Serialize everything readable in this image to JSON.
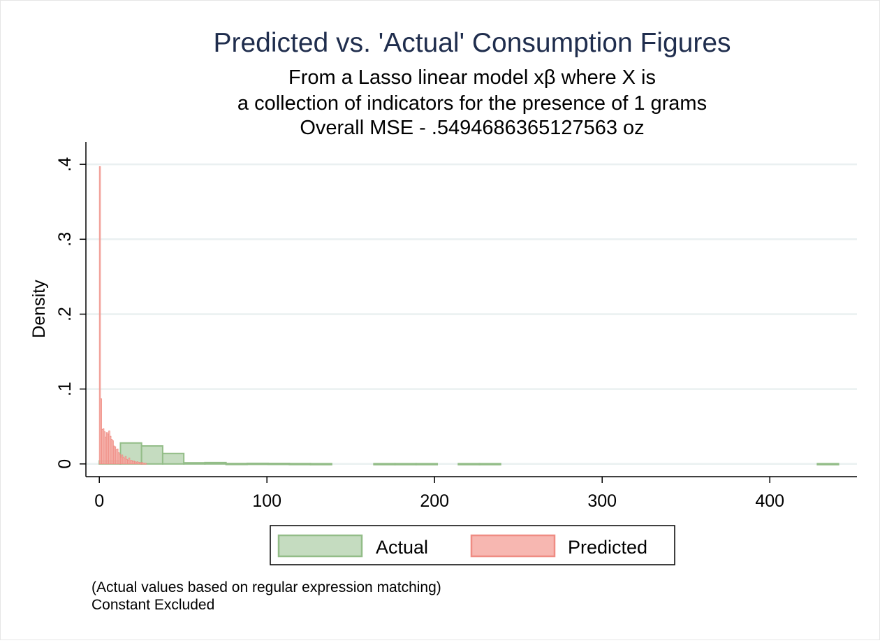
{
  "chart_data": {
    "type": "bar",
    "title": "Predicted vs. 'Actual' Consumption Figures",
    "subtitle_lines": [
      "From a Lasso linear model xβ where X is",
      "a collection of indicators for the presence  of 1 grams",
      "Overall MSE - .5494686365127563 oz"
    ],
    "xlabel": "",
    "ylabel": "Density",
    "xlim": [
      -8,
      452
    ],
    "ylim": [
      -0.017,
      0.43
    ],
    "x_ticks": [
      0,
      100,
      200,
      300,
      400
    ],
    "x_tick_labels": [
      "0",
      "100",
      "200",
      "300",
      "400"
    ],
    "y_ticks": [
      0,
      0.1,
      0.2,
      0.3,
      0.4
    ],
    "y_tick_labels": [
      "0",
      ".1",
      ".2",
      ".3",
      ".4"
    ],
    "grid": true,
    "legend_position": "bottom",
    "series": [
      {
        "name": "Actual",
        "fill": "#c5dcc0",
        "stroke": "#93bd88",
        "bins": [
          {
            "x0": 0,
            "x1": 12.6,
            "y": 0.004
          },
          {
            "x0": 12.6,
            "x1": 25.2,
            "y": 0.028
          },
          {
            "x0": 25.2,
            "x1": 37.8,
            "y": 0.024
          },
          {
            "x0": 37.8,
            "x1": 50.4,
            "y": 0.014
          },
          {
            "x0": 50.4,
            "x1": 63.0,
            "y": 0.0015
          },
          {
            "x0": 63.0,
            "x1": 75.6,
            "y": 0.0018
          },
          {
            "x0": 75.6,
            "x1": 88.2,
            "y": 0.0006
          },
          {
            "x0": 88.2,
            "x1": 100.8,
            "y": 0.0008
          },
          {
            "x0": 100.8,
            "x1": 113.4,
            "y": 0.0007
          },
          {
            "x0": 113.4,
            "x1": 126.0,
            "y": 0.0005
          },
          {
            "x0": 126.0,
            "x1": 138.6,
            "y": 0.0004
          },
          {
            "x0": 163.8,
            "x1": 176.4,
            "y": 0.0004
          },
          {
            "x0": 176.4,
            "x1": 189.0,
            "y": 0.0004
          },
          {
            "x0": 189.0,
            "x1": 201.6,
            "y": 0.0004
          },
          {
            "x0": 214.2,
            "x1": 226.8,
            "y": 0.0004
          },
          {
            "x0": 226.8,
            "x1": 239.4,
            "y": 0.0004
          },
          {
            "x0": 428.4,
            "x1": 441.0,
            "y": 0.0004
          }
        ]
      },
      {
        "name": "Predicted",
        "fill": "#f7b7b1",
        "stroke": "#ef8c83",
        "bins": [
          {
            "x0": 0.0,
            "x1": 0.7,
            "y": 0.397
          },
          {
            "x0": 0.7,
            "x1": 1.4,
            "y": 0.087
          },
          {
            "x0": 1.4,
            "x1": 2.1,
            "y": 0.046
          },
          {
            "x0": 2.1,
            "x1": 2.8,
            "y": 0.047
          },
          {
            "x0": 2.8,
            "x1": 3.5,
            "y": 0.043
          },
          {
            "x0": 3.5,
            "x1": 4.2,
            "y": 0.036
          },
          {
            "x0": 4.2,
            "x1": 4.9,
            "y": 0.042
          },
          {
            "x0": 4.9,
            "x1": 5.6,
            "y": 0.04
          },
          {
            "x0": 5.6,
            "x1": 6.3,
            "y": 0.044
          },
          {
            "x0": 6.3,
            "x1": 7.0,
            "y": 0.037
          },
          {
            "x0": 7.0,
            "x1": 7.7,
            "y": 0.033
          },
          {
            "x0": 7.7,
            "x1": 8.4,
            "y": 0.031
          },
          {
            "x0": 8.4,
            "x1": 9.1,
            "y": 0.024
          },
          {
            "x0": 9.1,
            "x1": 9.8,
            "y": 0.023
          },
          {
            "x0": 9.8,
            "x1": 10.5,
            "y": 0.019
          },
          {
            "x0": 10.5,
            "x1": 11.2,
            "y": 0.02
          },
          {
            "x0": 11.2,
            "x1": 11.9,
            "y": 0.015
          },
          {
            "x0": 11.9,
            "x1": 12.6,
            "y": 0.013
          },
          {
            "x0": 12.6,
            "x1": 13.3,
            "y": 0.009
          },
          {
            "x0": 13.3,
            "x1": 14.0,
            "y": 0.012
          },
          {
            "x0": 14.0,
            "x1": 14.7,
            "y": 0.009
          },
          {
            "x0": 14.7,
            "x1": 15.4,
            "y": 0.007
          },
          {
            "x0": 15.4,
            "x1": 16.1,
            "y": 0.01
          },
          {
            "x0": 16.1,
            "x1": 16.8,
            "y": 0.006
          },
          {
            "x0": 16.8,
            "x1": 17.5,
            "y": 0.005
          },
          {
            "x0": 17.5,
            "x1": 18.2,
            "y": 0.008
          },
          {
            "x0": 18.2,
            "x1": 18.9,
            "y": 0.004
          },
          {
            "x0": 18.9,
            "x1": 19.6,
            "y": 0.005
          },
          {
            "x0": 19.6,
            "x1": 20.3,
            "y": 0.003
          },
          {
            "x0": 20.3,
            "x1": 21.0,
            "y": 0.004
          },
          {
            "x0": 21.0,
            "x1": 21.7,
            "y": 0.003
          },
          {
            "x0": 21.7,
            "x1": 22.4,
            "y": 0.002
          },
          {
            "x0": 22.4,
            "x1": 23.1,
            "y": 0.003
          },
          {
            "x0": 23.1,
            "x1": 23.8,
            "y": 0.002
          },
          {
            "x0": 23.8,
            "x1": 24.5,
            "y": 0.002
          },
          {
            "x0": 24.5,
            "x1": 25.2,
            "y": 0.001
          },
          {
            "x0": 25.2,
            "x1": 25.9,
            "y": 0.002
          },
          {
            "x0": 25.9,
            "x1": 26.6,
            "y": 0.001
          },
          {
            "x0": 26.6,
            "x1": 27.3,
            "y": 0.001
          },
          {
            "x0": 27.3,
            "x1": 28.0,
            "y": 0.001
          }
        ]
      }
    ],
    "notes": [
      "(Actual values based on regular expression matching)",
      "Constant Excluded"
    ],
    "colors": {
      "title": "#1f2d4d",
      "grid": "#eaf0f1",
      "text": "#000000"
    }
  }
}
